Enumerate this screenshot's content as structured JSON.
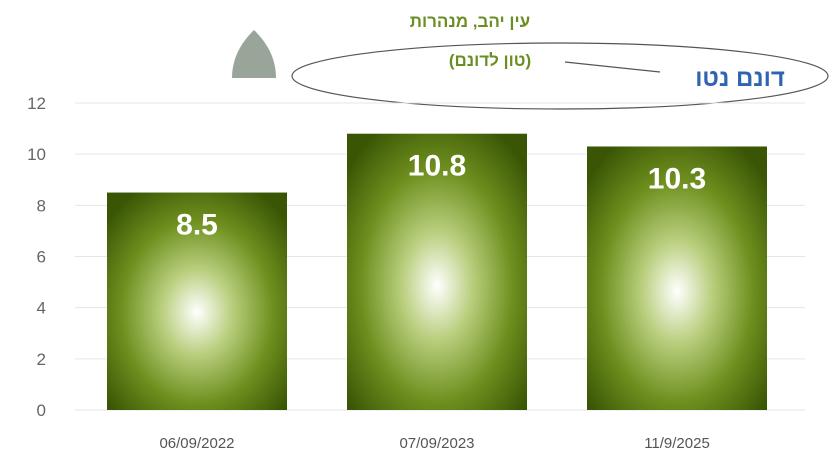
{
  "chart_data": {
    "type": "bar",
    "categories": [
      "06/09/2022",
      "07/09/2023",
      "11/9/2025"
    ],
    "values": [
      8.5,
      10.8,
      10.3
    ],
    "data_labels": [
      "8.5",
      "10.8",
      "10.3"
    ],
    "ylim": [
      0,
      12
    ],
    "yticks": [
      0,
      2,
      4,
      6,
      8,
      10,
      12
    ],
    "grid": true,
    "annotations": {
      "callout": "דונם נטו",
      "title_line1": "עין יהב, מנהרות",
      "title_line2": "(טון לדונם)"
    },
    "colors": {
      "bar_dark": "#3c5a05",
      "bar_mid": "#7a9a2a",
      "bar_glow": "#ffffff",
      "grid": "#e6e6e6",
      "title_green": "#6b8e23",
      "callout_blue": "#2f64b0",
      "icon_gray": "#9aa59a"
    },
    "icons": [
      "drop-icon"
    ]
  }
}
